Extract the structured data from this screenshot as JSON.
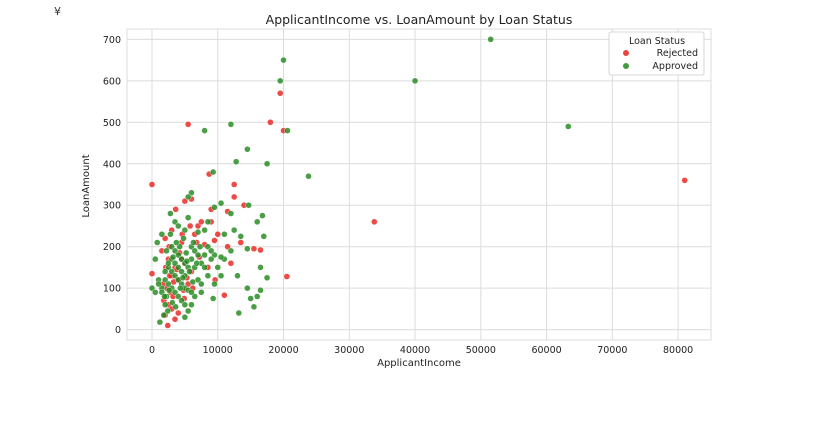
{
  "corner_mark": "¥",
  "chart_data": {
    "type": "scatter",
    "title": "ApplicantIncome vs. LoanAmount by Loan Status",
    "xlabel": "ApplicantIncome",
    "ylabel": "LoanAmount",
    "xlim": [
      -3800,
      85000
    ],
    "ylim": [
      -25,
      725
    ],
    "x_ticks": [
      0,
      10000,
      20000,
      30000,
      40000,
      50000,
      60000,
      70000,
      80000
    ],
    "y_ticks": [
      0,
      100,
      200,
      300,
      400,
      500,
      600,
      700
    ],
    "grid": true,
    "legend": {
      "title": "Loan Status",
      "placement": "top-right"
    },
    "series": [
      {
        "name": "Rejected",
        "color": "#e8231f",
        "points": [
          [
            0,
            350
          ],
          [
            5500,
            495
          ],
          [
            18000,
            500
          ],
          [
            20000,
            480
          ],
          [
            19500,
            570
          ],
          [
            12500,
            350
          ],
          [
            8700,
            375
          ],
          [
            6000,
            315
          ],
          [
            5000,
            310
          ],
          [
            9000,
            290
          ],
          [
            11500,
            285
          ],
          [
            12500,
            320
          ],
          [
            14000,
            300
          ],
          [
            33800,
            260
          ],
          [
            81000,
            360
          ],
          [
            20500,
            128
          ],
          [
            11000,
            83
          ],
          [
            15500,
            195
          ],
          [
            16500,
            192
          ],
          [
            12000,
            160
          ],
          [
            10000,
            230
          ],
          [
            9500,
            215
          ],
          [
            8000,
            205
          ],
          [
            9000,
            260
          ],
          [
            7000,
            250
          ],
          [
            11500,
            200
          ],
          [
            13500,
            210
          ],
          [
            4500,
            210
          ],
          [
            3000,
            240
          ],
          [
            2000,
            220
          ],
          [
            1500,
            190
          ],
          [
            2500,
            170
          ],
          [
            3500,
            150
          ],
          [
            3000,
            130
          ],
          [
            4000,
            120
          ],
          [
            2200,
            100
          ],
          [
            2800,
            90
          ],
          [
            3200,
            80
          ],
          [
            1800,
            70
          ],
          [
            2500,
            60
          ],
          [
            3000,
            50
          ],
          [
            4000,
            40
          ],
          [
            2000,
            35
          ],
          [
            3500,
            25
          ],
          [
            2400,
            10
          ],
          [
            4500,
            170
          ],
          [
            5000,
            160
          ],
          [
            6000,
            140
          ],
          [
            5500,
            110
          ],
          [
            4800,
            95
          ],
          [
            6500,
            230
          ],
          [
            7500,
            260
          ],
          [
            8500,
            150
          ],
          [
            0,
            135
          ],
          [
            2600,
            200
          ],
          [
            4200,
            185
          ],
          [
            3800,
            145
          ],
          [
            5300,
            125
          ],
          [
            6200,
            100
          ],
          [
            2100,
            150
          ],
          [
            3300,
            115
          ],
          [
            4600,
            230
          ],
          [
            5800,
            250
          ],
          [
            7200,
            175
          ],
          [
            3600,
            290
          ],
          [
            4900,
            75
          ],
          [
            6800,
            210
          ],
          [
            9600,
            120
          ],
          [
            2700,
            130
          ],
          [
            1700,
            110
          ]
        ]
      },
      {
        "name": "Approved",
        "color": "#22891d",
        "points": [
          [
            20000,
            650
          ],
          [
            19500,
            600
          ],
          [
            51500,
            700
          ],
          [
            40000,
            600
          ],
          [
            63300,
            490
          ],
          [
            20600,
            480
          ],
          [
            12000,
            495
          ],
          [
            8000,
            480
          ],
          [
            14500,
            435
          ],
          [
            12800,
            405
          ],
          [
            17500,
            400
          ],
          [
            23800,
            370
          ],
          [
            9300,
            380
          ],
          [
            6000,
            330
          ],
          [
            5500,
            320
          ],
          [
            14700,
            300
          ],
          [
            10500,
            305
          ],
          [
            9500,
            295
          ],
          [
            16800,
            275
          ],
          [
            12000,
            280
          ],
          [
            8500,
            260
          ],
          [
            16000,
            260
          ],
          [
            17000,
            225
          ],
          [
            13500,
            225
          ],
          [
            11000,
            230
          ],
          [
            8000,
            240
          ],
          [
            7000,
            235
          ],
          [
            14500,
            195
          ],
          [
            12000,
            190
          ],
          [
            16500,
            150
          ],
          [
            17500,
            125
          ],
          [
            16500,
            95
          ],
          [
            14500,
            100
          ],
          [
            16000,
            80
          ],
          [
            15000,
            75
          ],
          [
            15500,
            55
          ],
          [
            13200,
            40
          ],
          [
            11000,
            170
          ],
          [
            10500,
            175
          ],
          [
            9500,
            180
          ],
          [
            9000,
            170
          ],
          [
            10000,
            150
          ],
          [
            10500,
            130
          ],
          [
            9500,
            110
          ],
          [
            9300,
            75
          ],
          [
            7500,
            90
          ],
          [
            6500,
            80
          ],
          [
            6000,
            60
          ],
          [
            5500,
            45
          ],
          [
            5000,
            30
          ],
          [
            1200,
            18
          ],
          [
            1800,
            35
          ],
          [
            2000,
            60
          ],
          [
            2200,
            80
          ],
          [
            1500,
            100
          ],
          [
            1000,
            120
          ],
          [
            500,
            170
          ],
          [
            800,
            210
          ],
          [
            1500,
            230
          ],
          [
            2800,
            280
          ],
          [
            3500,
            260
          ],
          [
            4000,
            250
          ],
          [
            5000,
            240
          ],
          [
            5500,
            270
          ],
          [
            6000,
            200
          ],
          [
            6500,
            190
          ],
          [
            7000,
            180
          ],
          [
            7500,
            160
          ],
          [
            8000,
            150
          ],
          [
            8500,
            130
          ],
          [
            3000,
            200
          ],
          [
            3500,
            190
          ],
          [
            4000,
            180
          ],
          [
            4500,
            170
          ],
          [
            5000,
            160
          ],
          [
            2500,
            150
          ],
          [
            3000,
            140
          ],
          [
            3500,
            130
          ],
          [
            4000,
            120
          ],
          [
            4500,
            110
          ],
          [
            5000,
            100
          ],
          [
            5500,
            95
          ],
          [
            6000,
            90
          ],
          [
            2000,
            120
          ],
          [
            2500,
            110
          ],
          [
            3000,
            100
          ],
          [
            3500,
            90
          ],
          [
            4000,
            80
          ],
          [
            4500,
            70
          ],
          [
            5000,
            60
          ],
          [
            2000,
            140
          ],
          [
            2500,
            160
          ],
          [
            3000,
            170
          ],
          [
            3500,
            160
          ],
          [
            4000,
            150
          ],
          [
            4500,
            140
          ],
          [
            5000,
            130
          ],
          [
            5500,
            150
          ],
          [
            6000,
            170
          ],
          [
            6500,
            150
          ],
          [
            7000,
            120
          ],
          [
            7500,
            110
          ],
          [
            8000,
            180
          ],
          [
            8500,
            200
          ],
          [
            9000,
            190
          ],
          [
            12500,
            240
          ],
          [
            13000,
            130
          ],
          [
            0,
            100
          ],
          [
            500,
            90
          ],
          [
            1000,
            110
          ],
          [
            1500,
            90
          ],
          [
            2200,
            190
          ],
          [
            2800,
            230
          ],
          [
            4200,
            200
          ],
          [
            4800,
            220
          ],
          [
            5200,
            185
          ],
          [
            6300,
            210
          ],
          [
            6800,
            160
          ],
          [
            7300,
            200
          ],
          [
            3200,
            175
          ],
          [
            3700,
            210
          ],
          [
            4300,
            100
          ],
          [
            4700,
            125
          ],
          [
            5300,
            165
          ],
          [
            5700,
            140
          ],
          [
            6200,
            115
          ],
          [
            2600,
            95
          ],
          [
            3100,
            65
          ],
          [
            3600,
            55
          ],
          [
            2400,
            45
          ],
          [
            1900,
            80
          ]
        ]
      }
    ]
  }
}
